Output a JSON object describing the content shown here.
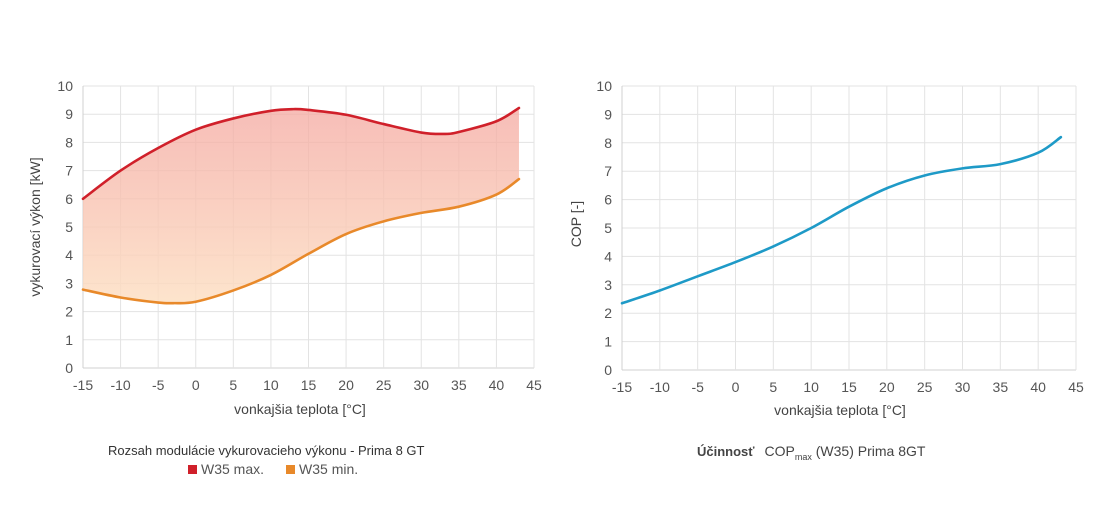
{
  "chart_data": [
    {
      "type": "area",
      "title": "Rozsah modulácie vykurovacieho výkonu - Prima 8 GT",
      "xlabel": "vonkajšia teplota  [°C]",
      "ylabel": "vykurovací výkon  [kW]",
      "xlim": [
        -15,
        45
      ],
      "ylim": [
        0,
        10
      ],
      "xticks": [
        "-15",
        "-10",
        "-5",
        "0",
        "5",
        "10",
        "15",
        "20",
        "25",
        "30",
        "35",
        "40",
        "45"
      ],
      "yticks": [
        "0",
        "1",
        "2",
        "3",
        "4",
        "5",
        "6",
        "7",
        "8",
        "9",
        "10"
      ],
      "grid": true,
      "series": [
        {
          "name": "W35 max.",
          "color": "#d0202a",
          "x": [
            -15,
            -10,
            -5,
            0,
            5,
            10,
            13,
            15,
            20,
            25,
            30,
            33,
            35,
            40,
            43
          ],
          "y": [
            6.0,
            7.0,
            7.8,
            8.45,
            8.85,
            9.12,
            9.18,
            9.15,
            8.98,
            8.65,
            8.35,
            8.3,
            8.37,
            8.75,
            9.22
          ]
        },
        {
          "name": "W35 min.",
          "color": "#e8892a",
          "x": [
            -15,
            -10,
            -5,
            -3,
            0,
            5,
            10,
            15,
            20,
            25,
            30,
            35,
            40,
            43
          ],
          "y": [
            2.78,
            2.5,
            2.32,
            2.3,
            2.35,
            2.75,
            3.3,
            4.05,
            4.75,
            5.2,
            5.5,
            5.72,
            6.15,
            6.7
          ]
        }
      ],
      "fill_between": {
        "top_color": "#f4a8a0",
        "bottom_color": "#fde0c4"
      },
      "caption": "Rozsah modulácie vykurovacieho výkonu - Prima 8 GT",
      "legend": [
        {
          "label": "W35 max.",
          "color": "#d0202a"
        },
        {
          "label": "W35 min.",
          "color": "#e8892a"
        }
      ]
    },
    {
      "type": "line",
      "title": "Účinnosť COPmax (W35) Prima 8GT",
      "xlabel": "vonkajšia teplota  [°C]",
      "ylabel": "COP [-]",
      "xlim": [
        -15,
        45
      ],
      "ylim": [
        0,
        10
      ],
      "xticks": [
        "-15",
        "-10",
        "-5",
        "0",
        "5",
        "10",
        "15",
        "20",
        "25",
        "30",
        "35",
        "40",
        "45"
      ],
      "yticks": [
        "0",
        "1",
        "2",
        "3",
        "4",
        "5",
        "6",
        "7",
        "8",
        "9",
        "10"
      ],
      "grid": true,
      "series": [
        {
          "name": "COPmax (W35)",
          "color": "#1e9ac7",
          "x": [
            -15,
            -10,
            -5,
            0,
            5,
            10,
            15,
            20,
            25,
            30,
            35,
            40,
            43
          ],
          "y": [
            2.35,
            2.8,
            3.3,
            3.8,
            4.35,
            5.0,
            5.75,
            6.4,
            6.85,
            7.1,
            7.25,
            7.65,
            8.2
          ]
        }
      ],
      "caption": {
        "bold": "Účinnosť",
        "main": "COP",
        "sub": "max",
        "rest": " (W35) Prima 8GT"
      }
    }
  ]
}
